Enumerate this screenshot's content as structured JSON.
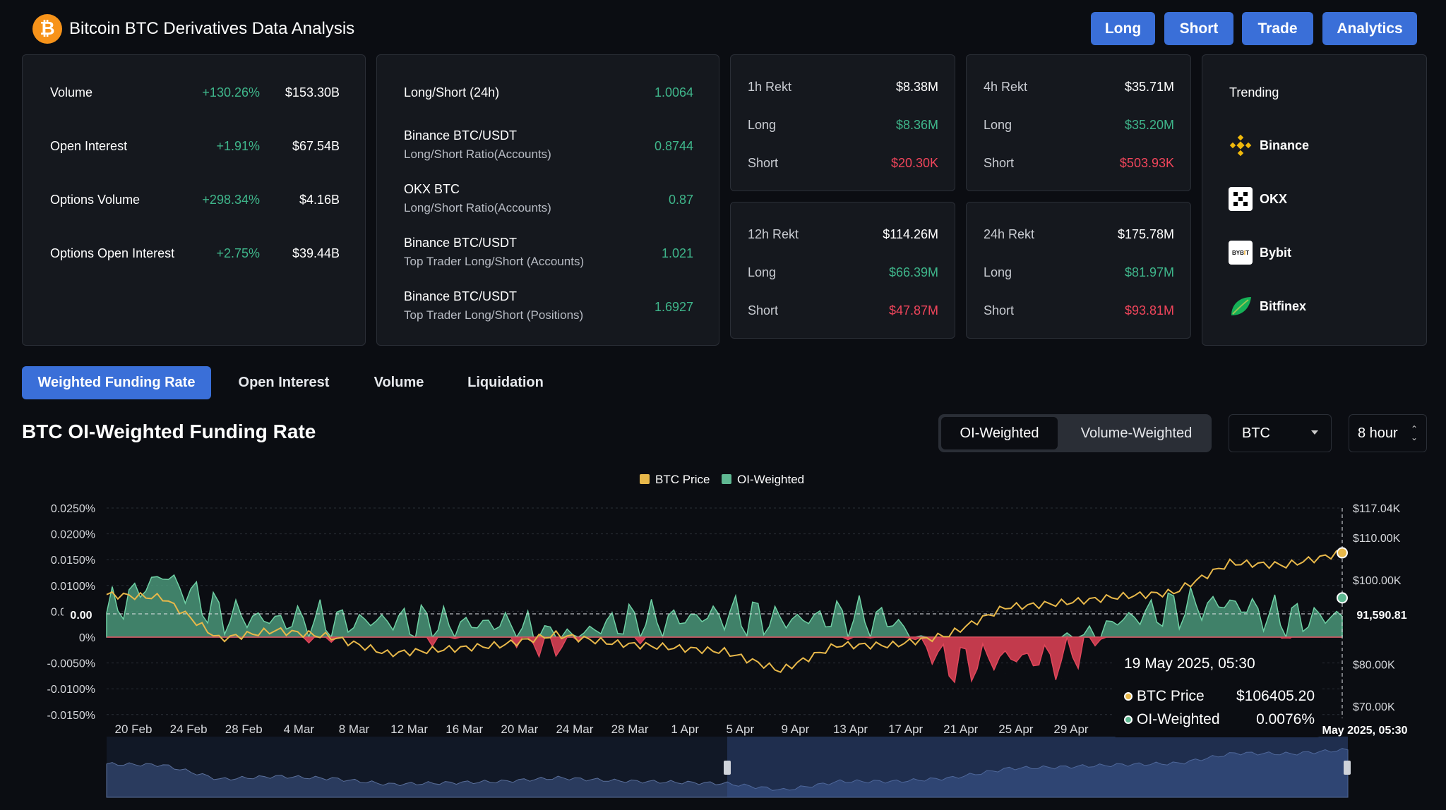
{
  "header": {
    "title": "Bitcoin BTC Derivatives Data Analysis",
    "buttons": [
      "Long",
      "Short",
      "Trade",
      "Analytics"
    ]
  },
  "stats": [
    {
      "label": "Volume",
      "change": "+130.26%",
      "value": "$153.30B"
    },
    {
      "label": "Open Interest",
      "change": "+1.91%",
      "value": "$67.54B"
    },
    {
      "label": "Options Volume",
      "change": "+298.34%",
      "value": "$4.16B"
    },
    {
      "label": "Options Open Interest",
      "change": "+2.75%",
      "value": "$39.44B"
    }
  ],
  "ratios": [
    {
      "title": "Long/Short (24h)",
      "sub": "",
      "value": "1.0064"
    },
    {
      "title": "Binance BTC/USDT",
      "sub": "Long/Short Ratio(Accounts)",
      "value": "0.8744"
    },
    {
      "title": "OKX BTC",
      "sub": "Long/Short Ratio(Accounts)",
      "value": "0.87"
    },
    {
      "title": "Binance BTC/USDT",
      "sub": "Top Trader Long/Short (Accounts)",
      "value": "1.021"
    },
    {
      "title": "Binance BTC/USDT",
      "sub": "Top Trader Long/Short (Positions)",
      "value": "1.6927"
    }
  ],
  "rekt": [
    {
      "label": "1h Rekt",
      "total": "$8.38M",
      "long_label": "Long",
      "long": "$8.36M",
      "short_label": "Short",
      "short": "$20.30K"
    },
    {
      "label": "4h Rekt",
      "total": "$35.71M",
      "long_label": "Long",
      "long": "$35.20M",
      "short_label": "Short",
      "short": "$503.93K"
    },
    {
      "label": "12h Rekt",
      "total": "$114.26M",
      "long_label": "Long",
      "long": "$66.39M",
      "short_label": "Short",
      "short": "$47.87M"
    },
    {
      "label": "24h Rekt",
      "total": "$175.78M",
      "long_label": "Long",
      "long": "$81.97M",
      "short_label": "Short",
      "short": "$93.81M"
    }
  ],
  "trending": {
    "title": "Trending",
    "items": [
      {
        "name": "Binance",
        "icon": "binance-icon"
      },
      {
        "name": "OKX",
        "icon": "okx-icon"
      },
      {
        "name": "Bybit",
        "icon": "bybit-icon"
      },
      {
        "name": "Bitfinex",
        "icon": "bitfinex-icon"
      }
    ]
  },
  "tabs": [
    "Weighted Funding Rate",
    "Open Interest",
    "Volume",
    "Liquidation"
  ],
  "section": {
    "title": "BTC OI-Weighted Funding Rate",
    "toggle": [
      "OI-Weighted",
      "Volume-Weighted"
    ],
    "asset_select": "BTC",
    "interval_select": "8 hour"
  },
  "colors": {
    "accent": "#3a6fd8",
    "positive": "#3fb68b",
    "negative": "#f0455b",
    "price_line": "#e8b84a",
    "oi_fill": "#5fb892"
  },
  "chart_data": {
    "type": "area",
    "title": "",
    "legend": [
      "BTC Price",
      "OI-Weighted"
    ],
    "legend_position": "top-center",
    "y_left_ticks": [
      "0.0250%",
      "0.0200%",
      "0.0150%",
      "0.0100%",
      "0.0050%",
      "0%",
      "-0.0050%",
      "-0.0100%",
      "-0.0150%"
    ],
    "y_left_lim": [
      -0.015,
      0.025
    ],
    "y_right_ticks": [
      "$117.04K",
      "$110.00K",
      "$100.00K",
      "$80.00K",
      "$70.00K"
    ],
    "y_right_lim": [
      68000,
      117040
    ],
    "x_ticks": [
      "20 Feb",
      "24 Feb",
      "28 Feb",
      "4 Mar",
      "8 Mar",
      "12 Mar",
      "16 Mar",
      "20 Mar",
      "24 Mar",
      "28 Mar",
      "1 Apr",
      "5 Apr",
      "9 Apr",
      "13 Apr",
      "17 Apr",
      "21 Apr",
      "25 Apr",
      "29 Apr"
    ],
    "crosshair_left_label": "0.00",
    "crosshair_right_label": "91,590.81",
    "crosshair_x_label": "19 May 2025, 05:30",
    "series": [
      {
        "name": "BTC Price",
        "x": [
          "20 Feb",
          "24 Feb",
          "28 Feb",
          "4 Mar",
          "8 Mar",
          "12 Mar",
          "16 Mar",
          "20 Mar",
          "24 Mar",
          "28 Mar",
          "1 Apr",
          "5 Apr",
          "9 Apr",
          "13 Apr",
          "17 Apr",
          "21 Apr",
          "25 Apr",
          "29 Apr",
          "3 May",
          "7 May",
          "11 May",
          "15 May",
          "19 May"
        ],
        "values": [
          96500,
          95800,
          86000,
          88000,
          86500,
          82500,
          83500,
          84500,
          87000,
          85000,
          84000,
          83000,
          78500,
          84500,
          84500,
          87000,
          93500,
          94500,
          96000,
          97000,
          104000,
          103500,
          106405
        ]
      },
      {
        "name": "OI-Weighted",
        "x": [
          "20 Feb",
          "24 Feb",
          "28 Feb",
          "4 Mar",
          "8 Mar",
          "12 Mar",
          "16 Mar",
          "20 Mar",
          "24 Mar",
          "28 Mar",
          "1 Apr",
          "5 Apr",
          "9 Apr",
          "13 Apr",
          "17 Apr",
          "21 Apr",
          "25 Apr",
          "29 Apr",
          "3 May",
          "7 May",
          "11 May",
          "15 May",
          "19 May"
        ],
        "values": [
          0.0085,
          0.022,
          0.008,
          0.006,
          0.005,
          0.006,
          0.004,
          0.005,
          -0.002,
          0.005,
          0.006,
          0.008,
          0.006,
          0.007,
          0.006,
          -0.01,
          -0.007,
          -0.008,
          0.006,
          0.01,
          0.012,
          0.006,
          0.0076
        ]
      }
    ]
  },
  "tooltip": {
    "date": "19 May 2025, 05:30",
    "rows": [
      {
        "label": "BTC Price",
        "value": "$106405.20"
      },
      {
        "label": "OI-Weighted",
        "value": "0.0076%"
      }
    ]
  }
}
